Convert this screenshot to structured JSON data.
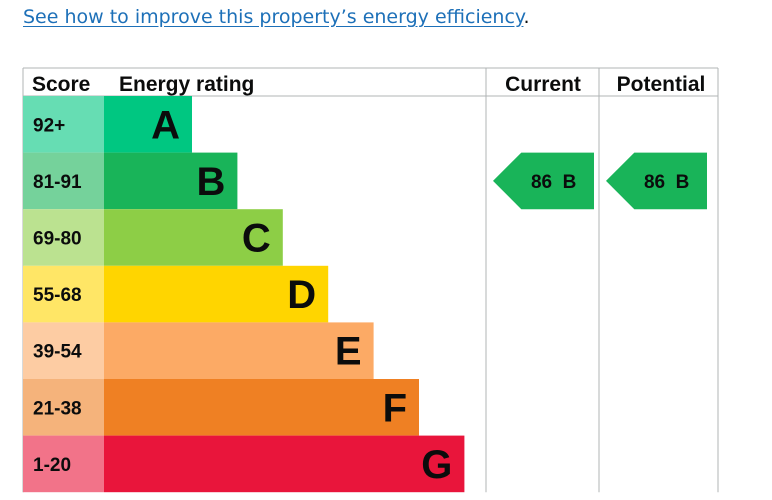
{
  "link": {
    "text": "See how to improve this property’s energy efficiency",
    "suffix": "."
  },
  "chart_data": {
    "type": "table",
    "headers": {
      "score": "Score",
      "rating": "Energy rating",
      "current": "Current",
      "potential": "Potential"
    },
    "bands": [
      {
        "score": "92+",
        "letter": "A",
        "bar_color": "#00c781",
        "score_bg": "#66ddb3",
        "min": 92,
        "max": 100
      },
      {
        "score": "81-91",
        "letter": "B",
        "bar_color": "#19b459",
        "score_bg": "#75d29b",
        "min": 81,
        "max": 91
      },
      {
        "score": "69-80",
        "letter": "C",
        "bar_color": "#8dce46",
        "score_bg": "#bbe290",
        "min": 69,
        "max": 80
      },
      {
        "score": "55-68",
        "letter": "D",
        "bar_color": "#ffd500",
        "score_bg": "#ffe666",
        "min": 55,
        "max": 68
      },
      {
        "score": "39-54",
        "letter": "E",
        "bar_color": "#fcaa65",
        "score_bg": "#fdcca3",
        "min": 39,
        "max": 54
      },
      {
        "score": "21-38",
        "letter": "F",
        "bar_color": "#ef8023",
        "score_bg": "#f5b37b",
        "min": 21,
        "max": 38
      },
      {
        "score": "1-20",
        "letter": "G",
        "bar_color": "#e9153b",
        "score_bg": "#f27389",
        "min": 1,
        "max": 20
      }
    ],
    "current": {
      "value": 86,
      "letter": "B",
      "label": "86  B",
      "color": "#19b459"
    },
    "potential": {
      "value": 86,
      "letter": "B",
      "label": "86  B",
      "color": "#19b459"
    }
  }
}
